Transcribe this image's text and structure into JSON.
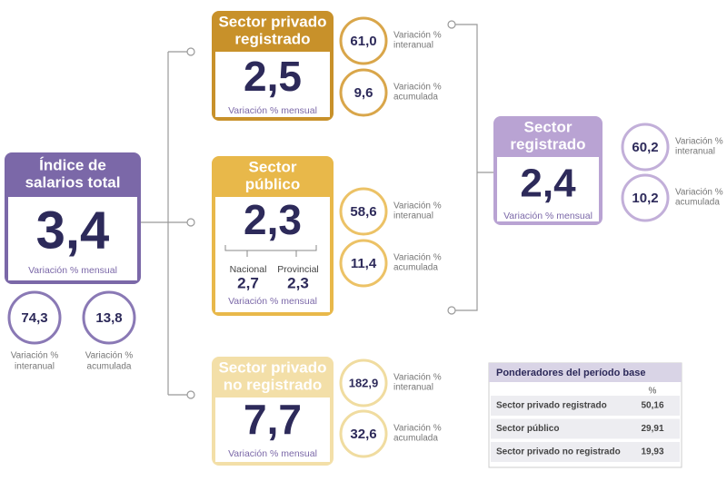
{
  "total": {
    "title": [
      "Índice de",
      "salarios total"
    ],
    "value": "3,4",
    "caption": "Variación % mensual",
    "indicators": [
      {
        "value": "74,3",
        "label": [
          "Variación %",
          "interanual"
        ]
      },
      {
        "value": "13,8",
        "label": [
          "Variación %",
          "acumulada"
        ]
      }
    ]
  },
  "sectors": [
    {
      "title": [
        "Sector privado",
        "registrado"
      ],
      "value": "2,5",
      "caption": "Variación % mensual",
      "indicators": [
        {
          "value": "61,0",
          "label": [
            "Variación %",
            "interanual"
          ]
        },
        {
          "value": "9,6",
          "label": [
            "Variación %",
            "acumulada"
          ]
        }
      ]
    },
    {
      "title": [
        "Sector",
        "público"
      ],
      "value": "2,3",
      "breakdown": [
        {
          "name": "Nacional",
          "value": "2,7"
        },
        {
          "name": "Provincial",
          "value": "2,3"
        }
      ],
      "caption": "Variación % mensual",
      "indicators": [
        {
          "value": "58,6",
          "label": [
            "Variación %",
            "interanual"
          ]
        },
        {
          "value": "11,4",
          "label": [
            "Variación %",
            "acumulada"
          ]
        }
      ]
    },
    {
      "title": [
        "Sector privado",
        "no registrado"
      ],
      "value": "7,7",
      "caption": "Variación % mensual",
      "indicators": [
        {
          "value": "182,9",
          "label": [
            "Variación %",
            "interanual"
          ]
        },
        {
          "value": "32,6",
          "label": [
            "Variación %",
            "acumulada"
          ]
        }
      ]
    }
  ],
  "registered": {
    "title": [
      "Sector",
      "registrado"
    ],
    "value": "2,4",
    "caption": "Variación % mensual",
    "indicators": [
      {
        "value": "60,2",
        "label": [
          "Variación %",
          "interanual"
        ]
      },
      {
        "value": "10,2",
        "label": [
          "Variación %",
          "acumulada"
        ]
      }
    ]
  },
  "weights": {
    "title": "Ponderadores del período base",
    "unit": "%",
    "rows": [
      [
        "Sector privado registrado",
        "50,16"
      ],
      [
        "Sector público",
        "29,91"
      ],
      [
        "Sector privado no registrado",
        "19,93"
      ]
    ]
  }
}
